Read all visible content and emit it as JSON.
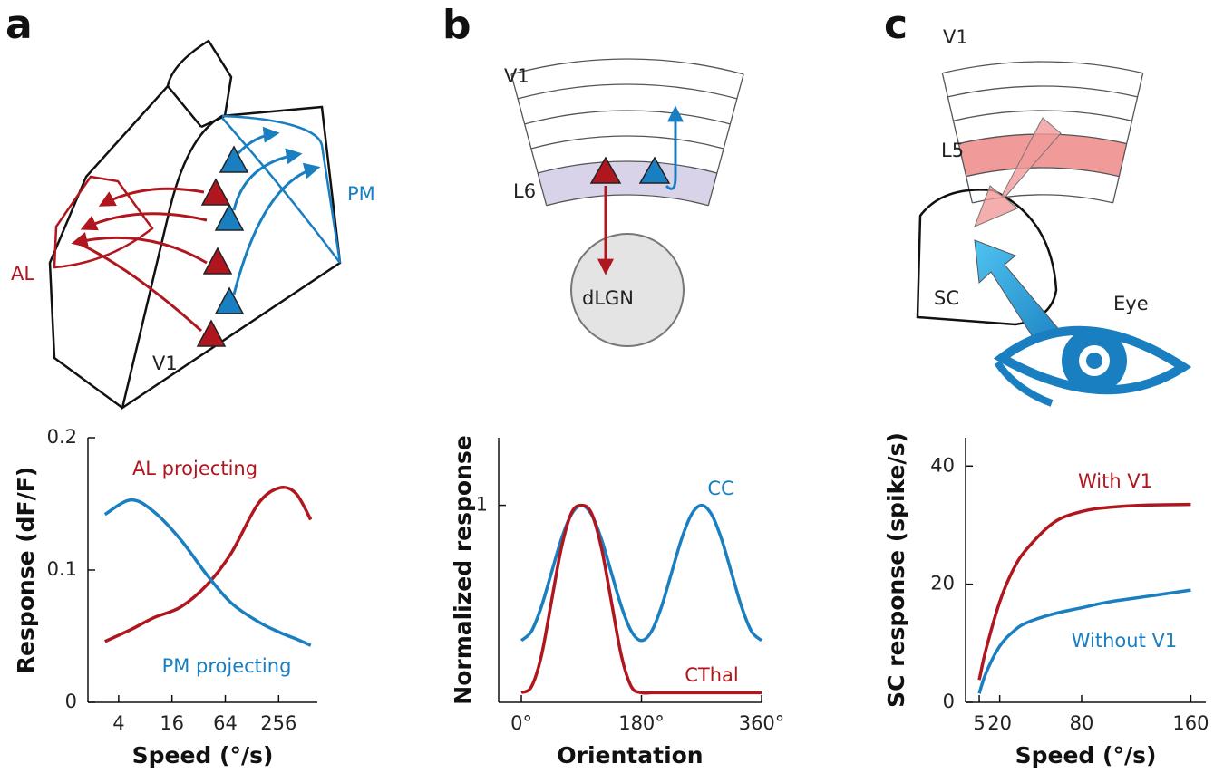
{
  "panels": [
    {
      "letter": "a",
      "diagram_labels": [
        "AL",
        "PM",
        "V1"
      ]
    },
    {
      "letter": "b",
      "diagram_labels": [
        "V1",
        "L6",
        "dLGN"
      ]
    },
    {
      "letter": "c",
      "diagram_labels": [
        "V1",
        "L5",
        "SC",
        "Eye"
      ]
    }
  ],
  "chart_data": [
    {
      "type": "line",
      "xlabel": "Speed (°/s)",
      "ylabel": "Response (dF/F)",
      "xscale": "log",
      "x": [
        2.8,
        5.5,
        10,
        20,
        40,
        75,
        150,
        260,
        400,
        590
      ],
      "series": [
        {
          "name": "AL projecting",
          "color": "#b0161e",
          "values": [
            0.046,
            0.055,
            0.064,
            0.072,
            0.089,
            0.113,
            0.15,
            0.162,
            0.158,
            0.138
          ]
        },
        {
          "name": "PM projecting",
          "color": "#1a7fc1",
          "values": [
            0.142,
            0.153,
            0.144,
            0.123,
            0.096,
            0.075,
            0.061,
            0.053,
            0.048,
            0.043
          ]
        }
      ],
      "xlim": [
        1.8,
        700
      ],
      "xticks": [
        4,
        16,
        64,
        256
      ],
      "ylim": [
        0,
        0.2
      ],
      "yticks": [
        0,
        0.1,
        0.2
      ]
    },
    {
      "type": "line",
      "xlabel": "Orientation",
      "ylabel": "Normalized response",
      "x": [
        0,
        15,
        30,
        45,
        60,
        75,
        90,
        105,
        120,
        135,
        150,
        165,
        180,
        195,
        210,
        225,
        240,
        255,
        270,
        285,
        300,
        315,
        330,
        345,
        360
      ],
      "series": [
        {
          "name": "CC",
          "color": "#1a7fc1",
          "values": [
            0.3,
            0.347,
            0.475,
            0.65,
            0.825,
            0.953,
            1,
            0.953,
            0.825,
            0.65,
            0.475,
            0.347,
            0.3,
            0.347,
            0.475,
            0.65,
            0.825,
            0.953,
            1,
            0.953,
            0.825,
            0.65,
            0.475,
            0.347,
            0.3
          ]
        },
        {
          "name": "CThal",
          "color": "#b0161e",
          "values": [
            0.03,
            0.06,
            0.22,
            0.5,
            0.78,
            0.96,
            1,
            0.96,
            0.78,
            0.5,
            0.22,
            0.06,
            0.03,
            0.03,
            0.03,
            0.03,
            0.03,
            0.03,
            0.03,
            0.03,
            0.03,
            0.03,
            0.03,
            0.03,
            0.03
          ]
        }
      ],
      "xlim": [
        -34,
        360
      ],
      "xticks": [
        {
          "value": 0,
          "label": "0°"
        },
        {
          "value": 180,
          "label": "180°"
        },
        {
          "value": 360,
          "label": "360°"
        }
      ],
      "ylim": [
        -0.02,
        1.35
      ],
      "yticks": [
        1
      ]
    },
    {
      "type": "line",
      "xlabel": "Speed (°/s)",
      "ylabel": "SC response (spike/s)",
      "x": [
        5,
        10,
        20,
        30,
        40,
        60,
        80,
        100,
        130,
        160
      ],
      "series": [
        {
          "name": "With V1",
          "color": "#b0161e",
          "values": [
            3.8,
            9,
            17,
            22.5,
            26,
            30.5,
            32.3,
            33,
            33.4,
            33.5
          ]
        },
        {
          "name": "Without V1",
          "color": "#1a7fc1",
          "values": [
            1.5,
            5,
            9.5,
            12,
            13.5,
            15,
            16,
            17,
            18,
            19
          ]
        }
      ],
      "xlim": [
        -5,
        171
      ],
      "xticks": [
        5,
        20,
        80,
        160
      ],
      "ylim": [
        0,
        44.8
      ],
      "yticks": [
        0,
        20,
        40
      ]
    }
  ]
}
